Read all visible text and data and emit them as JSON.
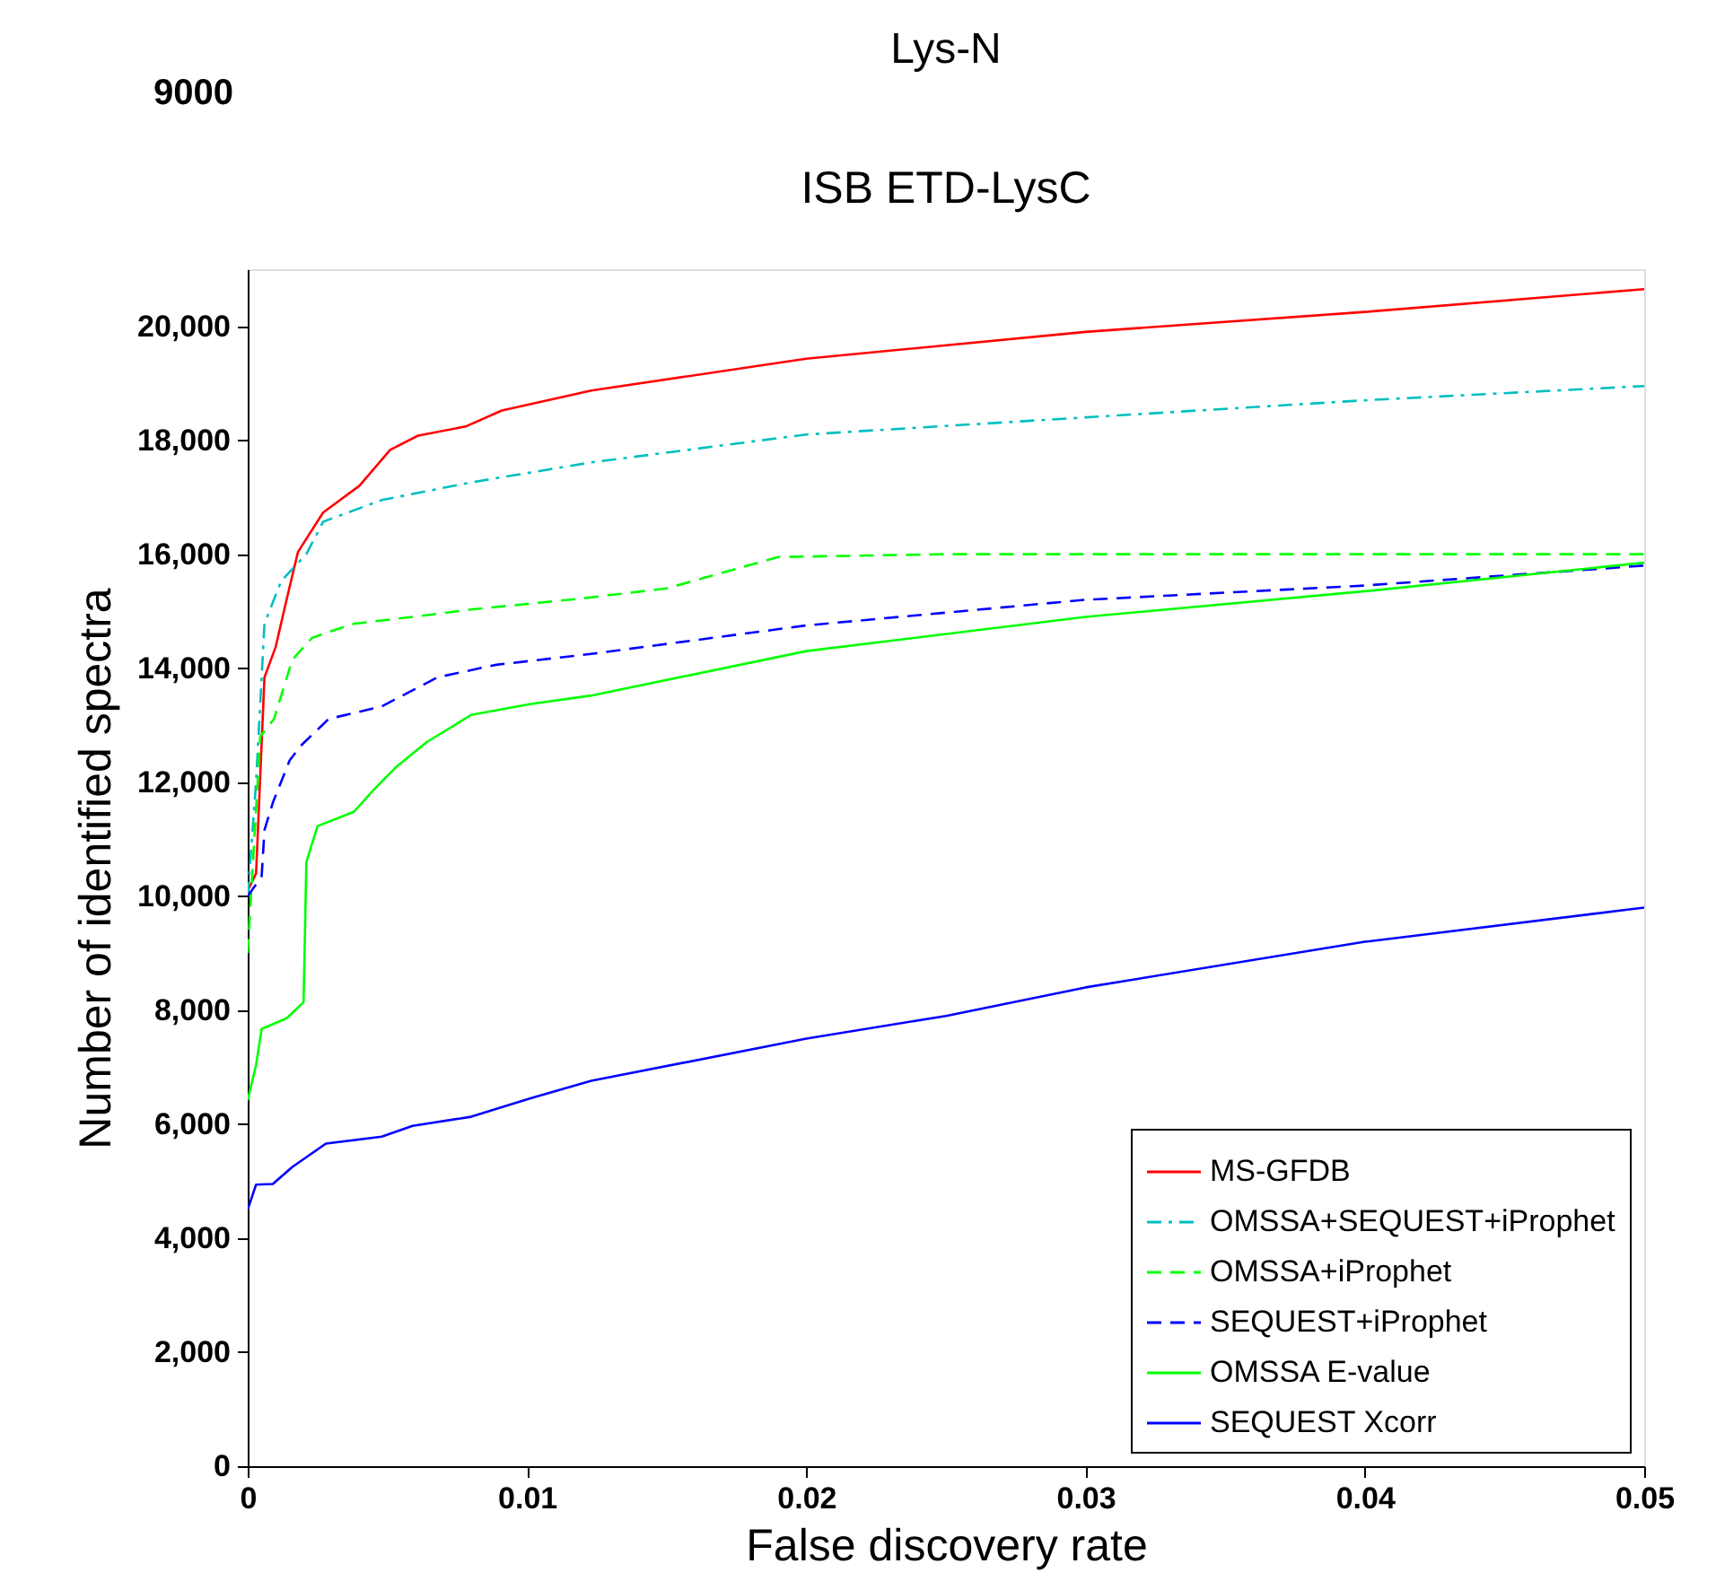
{
  "chart_data": {
    "type": "line",
    "title": "ISB ETD-LysC",
    "xlabel": "False discovery rate",
    "ylabel": "Number of identified spectra",
    "annotations": [
      "Lys-N",
      "9000"
    ],
    "xlim": [
      0,
      0.05
    ],
    "xticks": [
      0,
      0.01,
      0.02,
      0.03,
      0.04,
      0.05
    ],
    "ylim": [
      0,
      21000
    ],
    "yticks": [
      0,
      {
        "value": 2000,
        "label": "2,000"
      },
      {
        "value": 4000,
        "label": "4,000"
      },
      {
        "value": 6000,
        "label": "6,000"
      },
      {
        "value": 8000,
        "label": "8,000"
      },
      {
        "value": 10000,
        "label": "10,000"
      },
      {
        "value": 12000,
        "label": "12,000"
      },
      {
        "value": 14000,
        "label": "14,000"
      },
      {
        "value": 16000,
        "label": "16,000"
      },
      {
        "value": 18000,
        "label": "18,000"
      },
      {
        "value": 20000,
        "label": "20,000"
      }
    ],
    "grid": false,
    "legend": "bottom right",
    "marker": "none",
    "series": [
      {
        "name": "MS-GFDB",
        "color": "#ff0000",
        "line_style": "solid",
        "x": [
          0,
          0.0003,
          0.0006,
          0.001,
          0.0014,
          0.0018,
          0.0027,
          0.004,
          0.0051,
          0.0061,
          0.0078,
          0.0091,
          0.0123,
          0.02,
          0.03,
          0.04,
          0.05
        ],
        "values": [
          10100,
          10400,
          13840,
          14370,
          15220,
          16040,
          16730,
          17200,
          17830,
          18080,
          18240,
          18520,
          18870,
          19430,
          19900,
          20250,
          20650
        ]
      },
      {
        "name": "OMSSA+SEQUEST+iProphet",
        "color": "#00bfbf",
        "line_style": "dashdot",
        "x": [
          0,
          0.0003,
          0.0006,
          0.0012,
          0.0021,
          0.0027,
          0.0048,
          0.008,
          0.0123,
          0.02,
          0.03,
          0.04,
          0.05
        ],
        "values": [
          10000,
          12000,
          14780,
          15530,
          16000,
          16570,
          16950,
          17260,
          17610,
          18100,
          18400,
          18700,
          18950
        ]
      },
      {
        "name": "OMSSA+iProphet",
        "color": "#00ff00",
        "line_style": "dashed",
        "x": [
          0,
          0.00045,
          0.00094,
          0.0016,
          0.0023,
          0.0028,
          0.0038,
          0.0059,
          0.008,
          0.0119,
          0.015,
          0.019,
          0.025,
          0.05
        ],
        "values": [
          9000,
          12800,
          13110,
          14150,
          14530,
          14620,
          14780,
          14900,
          15030,
          15220,
          15400,
          15950,
          16000,
          16000
        ]
      },
      {
        "name": "SEQUEST+iProphet",
        "color": "#0000ff",
        "line_style": "dashed",
        "x": [
          0,
          0.0005,
          0.0006,
          0.0009,
          0.0015,
          0.0019,
          0.0029,
          0.0048,
          0.0068,
          0.0089,
          0.0123,
          0.02,
          0.03,
          0.04,
          0.05
        ],
        "values": [
          10000,
          10350,
          11160,
          11640,
          12380,
          12640,
          13110,
          13330,
          13840,
          14060,
          14250,
          14750,
          15200,
          15450,
          15800
        ]
      },
      {
        "name": "OMSSA E-value",
        "color": "#00ff00",
        "line_style": "solid",
        "x": [
          0,
          0.0003,
          0.0005,
          0.0014,
          0.002,
          0.0021,
          0.0025,
          0.0038,
          0.0045,
          0.0053,
          0.0064,
          0.008,
          0.0101,
          0.0123,
          0.02,
          0.03,
          0.04,
          0.05
        ],
        "values": [
          6420,
          7040,
          7670,
          7860,
          8140,
          10600,
          11230,
          11480,
          11860,
          12260,
          12700,
          13180,
          13370,
          13520,
          14300,
          14900,
          15350,
          15850
        ]
      },
      {
        "name": "SEQUEST Xcorr",
        "color": "#0000ff",
        "line_style": "solid",
        "x": [
          0,
          0.0003,
          0.0009,
          0.0016,
          0.0028,
          0.0048,
          0.0059,
          0.008,
          0.0101,
          0.0123,
          0.02,
          0.025,
          0.03,
          0.04,
          0.05
        ],
        "values": [
          4500,
          4940,
          4950,
          5250,
          5660,
          5780,
          5970,
          6130,
          6450,
          6760,
          7500,
          7900,
          8400,
          9200,
          9800
        ]
      }
    ]
  }
}
